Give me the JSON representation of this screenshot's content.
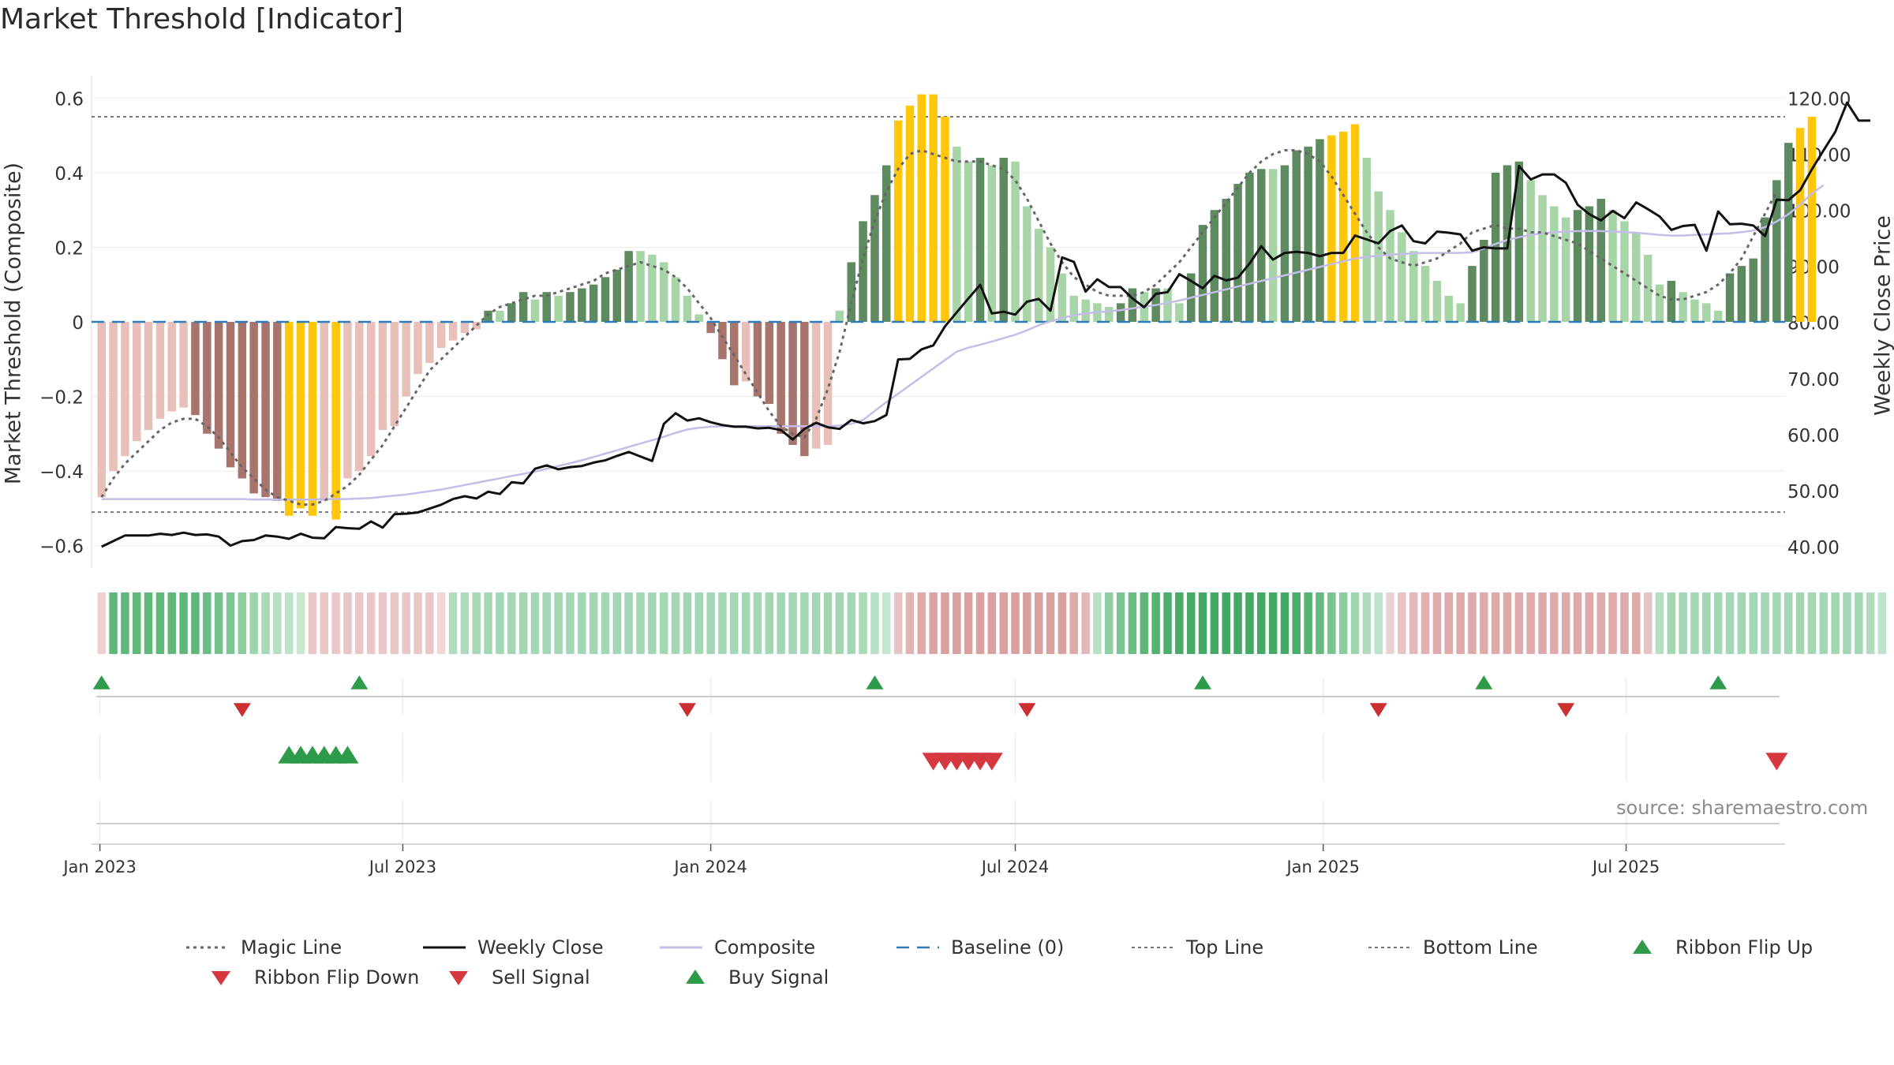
{
  "chart_data": {
    "type": "bar",
    "title": "Market Threshold [Indicator]",
    "ylabel_left": "Market Threshold (Composite)",
    "ylabel_right": "Weekly Close Price",
    "ylim_left": [
      -0.66,
      0.66
    ],
    "ylim_right": [
      36.2,
      124.0
    ],
    "yticks_left": [
      0.6,
      0.4,
      0.2,
      0,
      -0.2,
      -0.4,
      -0.6
    ],
    "ytick_labels_left": [
      "0.6",
      "0.4",
      "0.2",
      "0",
      "−0.2",
      "−0.4",
      "−0.6"
    ],
    "yticks_right": [
      120,
      110,
      100,
      90,
      80,
      70,
      60,
      50,
      40
    ],
    "ytick_labels_right": [
      "120.00",
      "110.00",
      "100.00",
      "90.00",
      "80.00",
      "70.00",
      "60.00",
      "50.00",
      "40.00"
    ],
    "x_start": "2023-01-02",
    "x_end": "2025-09-29",
    "xticks": [
      {
        "date": "2023-01-01",
        "label": "Jan 2023"
      },
      {
        "date": "2023-07-01",
        "label": "Jul 2023"
      },
      {
        "date": "2024-01-01",
        "label": "Jan 2024"
      },
      {
        "date": "2024-07-01",
        "label": "Jul 2024"
      },
      {
        "date": "2025-01-01",
        "label": "Jan 2025"
      },
      {
        "date": "2025-07-01",
        "label": "Jul 2025"
      }
    ],
    "top_line": 0.55,
    "bottom_line": -0.51,
    "baseline": 0,
    "composite": [
      -0.47,
      -0.4,
      -0.36,
      -0.32,
      -0.29,
      -0.26,
      -0.24,
      -0.23,
      -0.25,
      -0.3,
      -0.34,
      -0.39,
      -0.42,
      -0.46,
      -0.47,
      -0.48,
      -0.52,
      -0.5,
      -0.52,
      -0.48,
      -0.53,
      -0.42,
      -0.4,
      -0.36,
      -0.29,
      -0.28,
      -0.2,
      -0.14,
      -0.11,
      -0.07,
      -0.05,
      -0.03,
      -0.02,
      0.03,
      0.03,
      0.05,
      0.08,
      0.06,
      0.08,
      0.07,
      0.08,
      0.09,
      0.1,
      0.12,
      0.14,
      0.19,
      0.19,
      0.18,
      0.16,
      0.12,
      0.07,
      0.02,
      -0.03,
      -0.1,
      -0.17,
      -0.16,
      -0.2,
      -0.22,
      -0.3,
      -0.33,
      -0.36,
      -0.34,
      -0.33,
      0.03,
      0.16,
      0.27,
      0.34,
      0.42,
      0.54,
      0.58,
      0.61,
      0.61,
      0.55,
      0.47,
      0.43,
      0.44,
      0.42,
      0.44,
      0.43,
      0.31,
      0.25,
      0.2,
      0.13,
      0.07,
      0.06,
      0.05,
      0.04,
      0.05,
      0.09,
      0.08,
      0.09,
      0.09,
      0.05,
      0.13,
      0.26,
      0.3,
      0.33,
      0.37,
      0.4,
      0.41,
      0.41,
      0.42,
      0.46,
      0.47,
      0.49,
      0.5,
      0.51,
      0.53,
      0.44,
      0.35,
      0.3,
      0.24,
      0.19,
      0.15,
      0.11,
      0.07,
      0.05,
      0.15,
      0.22,
      0.4,
      0.42,
      0.43,
      0.38,
      0.34,
      0.31,
      0.28,
      0.3,
      0.31,
      0.33,
      0.3,
      0.27,
      0.24,
      0.18,
      0.1,
      0.11,
      0.08,
      0.06,
      0.05,
      0.03,
      0.13,
      0.15,
      0.17,
      0.28,
      0.38,
      0.48,
      0.52,
      0.55
    ],
    "weekly_close": [
      40,
      41,
      42,
      42,
      42,
      42.3,
      42.1,
      42.5,
      42.1,
      42.2,
      41.8,
      40.2,
      41,
      41.2,
      42,
      41.8,
      41.4,
      42.3,
      41.6,
      41.5,
      43.5,
      43.3,
      43.2,
      44.5,
      43.4,
      45.8,
      45.9,
      46.1,
      46.8,
      47.5,
      48.5,
      49,
      48.6,
      49.8,
      49.4,
      51.5,
      51.3,
      53.9,
      54.5,
      53.8,
      54.2,
      54.4,
      55,
      55.4,
      56.2,
      56.9,
      56.1,
      55.3,
      61.9,
      63.8,
      62.5,
      62.9,
      62.2,
      61.7,
      61.4,
      61.4,
      61.1,
      61.2,
      60.8,
      59.1,
      61,
      62.1,
      61.3,
      61,
      62.6,
      62,
      62.4,
      63.5,
      73.4,
      73.5,
      75.2,
      75.9,
      79.3,
      81.8,
      84.3,
      86.7,
      81.6,
      81.9,
      81.4,
      83.7,
      84.2,
      82.1,
      91.6,
      90.8,
      85.5,
      87.7,
      86.3,
      86.3,
      84.3,
      82.7,
      85.1,
      85.4,
      88.6,
      87.4,
      86.1,
      88.3,
      87.5,
      88,
      90.5,
      93.6,
      91.2,
      92.4,
      92.6,
      92.4,
      91.8,
      92.4,
      92.4,
      95.5,
      94.8,
      94.1,
      96.3,
      97.3,
      94.5,
      94.1,
      96.2,
      96,
      95.7,
      92.8,
      93.4,
      93.2,
      93.2,
      107.9,
      105.5,
      106.4,
      106.4,
      104.9,
      101,
      99.3,
      98.2,
      99.9,
      98.6,
      101.4,
      100.2,
      98.9,
      96.5,
      97.2,
      97.4,
      92.8,
      99.8,
      97.5,
      97.6,
      97.3,
      95.4,
      101.9,
      101.8,
      103.6,
      107.3,
      110.7,
      114,
      119.2,
      116,
      116
    ],
    "magic_line": [
      -0.47,
      -0.42,
      -0.38,
      -0.35,
      -0.32,
      -0.29,
      -0.27,
      -0.26,
      -0.26,
      -0.28,
      -0.31,
      -0.35,
      -0.39,
      -0.42,
      -0.45,
      -0.47,
      -0.48,
      -0.49,
      -0.49,
      -0.48,
      -0.46,
      -0.44,
      -0.41,
      -0.37,
      -0.33,
      -0.28,
      -0.23,
      -0.18,
      -0.13,
      -0.1,
      -0.07,
      -0.04,
      -0.01,
      0.02,
      0.04,
      0.05,
      0.06,
      0.07,
      0.07,
      0.08,
      0.09,
      0.1,
      0.11,
      0.13,
      0.14,
      0.15,
      0.16,
      0.15,
      0.14,
      0.12,
      0.09,
      0.05,
      0.01,
      -0.04,
      -0.09,
      -0.14,
      -0.19,
      -0.24,
      -0.28,
      -0.3,
      -0.31,
      -0.26,
      -0.18,
      -0.08,
      0.05,
      0.17,
      0.27,
      0.35,
      0.41,
      0.45,
      0.46,
      0.45,
      0.44,
      0.43,
      0.43,
      0.43,
      0.42,
      0.41,
      0.38,
      0.33,
      0.27,
      0.21,
      0.16,
      0.12,
      0.1,
      0.08,
      0.07,
      0.07,
      0.07,
      0.08,
      0.1,
      0.13,
      0.16,
      0.2,
      0.24,
      0.28,
      0.32,
      0.36,
      0.4,
      0.43,
      0.45,
      0.46,
      0.46,
      0.45,
      0.43,
      0.39,
      0.34,
      0.29,
      0.24,
      0.2,
      0.17,
      0.16,
      0.15,
      0.16,
      0.17,
      0.19,
      0.21,
      0.24,
      0.25,
      0.26,
      0.25,
      0.25,
      0.24,
      0.24,
      0.23,
      0.22,
      0.21,
      0.19,
      0.17,
      0.15,
      0.13,
      0.11,
      0.09,
      0.07,
      0.06,
      0.06,
      0.07,
      0.08,
      0.1,
      0.13,
      0.17,
      0.23,
      0.29,
      0.35
    ],
    "composite_line": [
      48.5,
      48.5,
      48.5,
      48.5,
      48.5,
      48.5,
      48.5,
      48.5,
      48.5,
      48.5,
      48.5,
      48.5,
      48.5,
      48.4,
      48.4,
      48.4,
      48.4,
      48.4,
      48.4,
      48.5,
      48.5,
      48.5,
      48.6,
      48.7,
      48.9,
      49.1,
      49.3,
      49.6,
      49.9,
      50.2,
      50.6,
      51.0,
      51.4,
      51.8,
      52.2,
      52.6,
      53.0,
      53.4,
      53.9,
      54.4,
      54.9,
      55.4,
      56.0,
      56.6,
      57.2,
      57.8,
      58.4,
      59.0,
      59.6,
      60.3,
      60.9,
      61.2,
      61.4,
      61.5,
      61.5,
      61.5,
      61.5,
      61.5,
      61.5,
      61.5,
      61.5,
      61.5,
      61.5,
      61.6,
      61.9,
      62.6,
      64.2,
      65.8,
      67.3,
      68.8,
      70.3,
      71.8,
      73.3,
      74.8,
      75.5,
      76.0,
      76.6,
      77.2,
      77.8,
      78.6,
      79.5,
      80.2,
      80.8,
      81.3,
      81.6,
      81.8,
      82.0,
      82.2,
      82.5,
      82.8,
      83.1,
      83.5,
      83.9,
      84.4,
      84.9,
      85.4,
      85.9,
      86.4,
      86.9,
      87.4,
      87.9,
      88.4,
      88.9,
      89.4,
      89.9,
      90.4,
      90.9,
      91.4,
      91.7,
      91.9,
      92.1,
      92.2,
      92.3,
      92.4,
      92.4,
      92.4,
      92.4,
      92.5,
      93.2,
      94.0,
      94.7,
      95.2,
      95.6,
      95.9,
      96.1,
      96.2,
      96.3,
      96.3,
      96.3,
      96.2,
      96.1,
      96.0,
      95.8,
      95.6,
      95.5,
      95.5,
      95.6,
      95.7,
      95.8,
      95.9,
      96.1,
      96.4,
      97.0,
      98.0,
      99.3,
      101.0,
      103.0,
      104.5
    ],
    "ribbon_colors": [
      "#f1cfcf",
      "#5fb87a",
      "#5fb87a",
      "#5fb87a",
      "#5fb87a",
      "#5fb87a",
      "#5fb87a",
      "#5fb87a",
      "#5fb87a",
      "#6bbe85",
      "#73c28a",
      "#7dc693",
      "#8ccda0",
      "#9cd4ad",
      "#a9dab8",
      "#b5dfc2",
      "#bfe3ca",
      "#c7e7d0",
      "#ebc6c6",
      "#ebc6c6",
      "#ebc6c6",
      "#ebc6c6",
      "#ebc6c6",
      "#ebc6c6",
      "#ebc6c6",
      "#ebc6c6",
      "#ebc6c6",
      "#ebc6c6",
      "#ebc6c6",
      "#f2d6d6",
      "#b1dcbe",
      "#acdabb",
      "#a7d8b6",
      "#a3d6b3",
      "#a3d6b3",
      "#a3d6b3",
      "#a3d6b3",
      "#a3d6b3",
      "#a3d6b3",
      "#a3d6b3",
      "#a3d6b3",
      "#a3d6b3",
      "#a3d6b3",
      "#a3d6b3",
      "#a3d6b3",
      "#a3d6b3",
      "#a3d6b3",
      "#a3d6b3",
      "#a3d6b3",
      "#a3d6b3",
      "#a3d6b3",
      "#a3d6b3",
      "#a3d6b3",
      "#a3d6b3",
      "#a3d6b3",
      "#a3d6b3",
      "#a3d6b3",
      "#a3d6b3",
      "#a3d6b3",
      "#a3d6b3",
      "#a3d6b3",
      "#a3d6b3",
      "#a3d6b3",
      "#a3d6b3",
      "#a3d6b3",
      "#a9dab8",
      "#b6e0c3",
      "#c4e6ce",
      "#e7c3c3",
      "#e2b3b3",
      "#dea9a9",
      "#dba3a3",
      "#da9f9f",
      "#da9f9f",
      "#da9f9f",
      "#da9f9f",
      "#da9f9f",
      "#da9f9f",
      "#da9f9f",
      "#da9f9f",
      "#da9f9f",
      "#da9f9f",
      "#da9f9f",
      "#dea9a9",
      "#e3b8b8",
      "#b7e0c4",
      "#8fcfa3",
      "#7ac591",
      "#6abd83",
      "#5cb678",
      "#53b371",
      "#4dae6b",
      "#48ab67",
      "#45aa65",
      "#43a963",
      "#43a963",
      "#43a963",
      "#43a963",
      "#43a963",
      "#43a963",
      "#43a963",
      "#43a963",
      "#4aac68",
      "#55b373",
      "#65ba7f",
      "#78c38f",
      "#8bcc9e",
      "#9ed5ae",
      "#aedcbc",
      "#bfe3ca",
      "#ead3d3",
      "#e7c3c3",
      "#e3b8b8",
      "#e0afaf",
      "#dea9a9",
      "#dea9a9",
      "#dea9a9",
      "#dea9a9",
      "#dea9a9",
      "#dea9a9",
      "#dea9a9",
      "#dea9a9",
      "#dea9a9",
      "#dea9a9",
      "#dea9a9",
      "#dea9a9",
      "#dea9a9",
      "#dea9a9",
      "#dea9a9",
      "#dea9a9",
      "#dea9a9",
      "#dea9a9",
      "#e7c3c3",
      "#b4dfc1",
      "#a3d6b3",
      "#a3d6b3",
      "#a3d6b3",
      "#a3d6b3",
      "#a3d6b3",
      "#a3d6b3",
      "#a3d6b3",
      "#a3d6b3",
      "#a3d6b3",
      "#a3d6b3",
      "#a3d6b3",
      "#a3d6b3",
      "#a3d6b3",
      "#a3d6b3",
      "#a3d6b3",
      "#a3d6b3",
      "#a3d6b3",
      "#b0dbbd",
      "#bde3c8"
    ],
    "ribbon_flip_up_dates": [
      "2023-01-02",
      "2023-06-05",
      "2024-04-08",
      "2024-10-21",
      "2025-04-07",
      "2025-08-25"
    ],
    "ribbon_flip_down_dates": [
      "2023-03-27",
      "2023-12-18",
      "2024-07-08",
      "2025-02-03",
      "2025-05-26"
    ],
    "buy_signal_dates": [
      "2023-04-24",
      "2023-05-01",
      "2023-05-08",
      "2023-05-15",
      "2023-05-22",
      "2023-05-29"
    ],
    "sell_signal_dates": [
      "2024-05-13",
      "2024-05-20",
      "2024-05-27",
      "2024-06-03",
      "2024-06-10",
      "2024-06-17",
      "2025-09-29"
    ],
    "colors": {
      "strong_green": "#5d8a5f",
      "light_green": "#a8d5a8",
      "strong_red": "#a8746e",
      "light_red": "#e8c0b9",
      "extreme": "#ffc60a",
      "weekly_close": "#111111",
      "composite_line": "#c4bde8",
      "magic_line": "#666666",
      "baseline": "#2d7bb8",
      "threshold": "#777777",
      "buy": "#2e9b4a",
      "sell": "#d5383e",
      "flip_up": "#2e9b4a",
      "flip_down": "#cc2f2f"
    },
    "legend": [
      {
        "label": "Magic Line",
        "icon": "dotted-line"
      },
      {
        "label": "Weekly Close",
        "icon": "solid-line"
      },
      {
        "label": "Composite",
        "icon": "lavender-line"
      },
      {
        "label": "Baseline (0)",
        "icon": "dashed-line"
      },
      {
        "label": "Top Line",
        "icon": "thin-dotted-line"
      },
      {
        "label": "Bottom Line",
        "icon": "thin-dotted-line"
      },
      {
        "label": "Ribbon Flip Up",
        "icon": "triangle-up-green"
      },
      {
        "label": "Ribbon Flip Down",
        "icon": "triangle-down-red"
      },
      {
        "label": "Sell Signal",
        "icon": "triangle-down-red"
      },
      {
        "label": "Buy Signal",
        "icon": "triangle-up-green"
      }
    ],
    "legend_placement": "bottom",
    "grid": true,
    "source": "source: sharemaestro.com"
  }
}
